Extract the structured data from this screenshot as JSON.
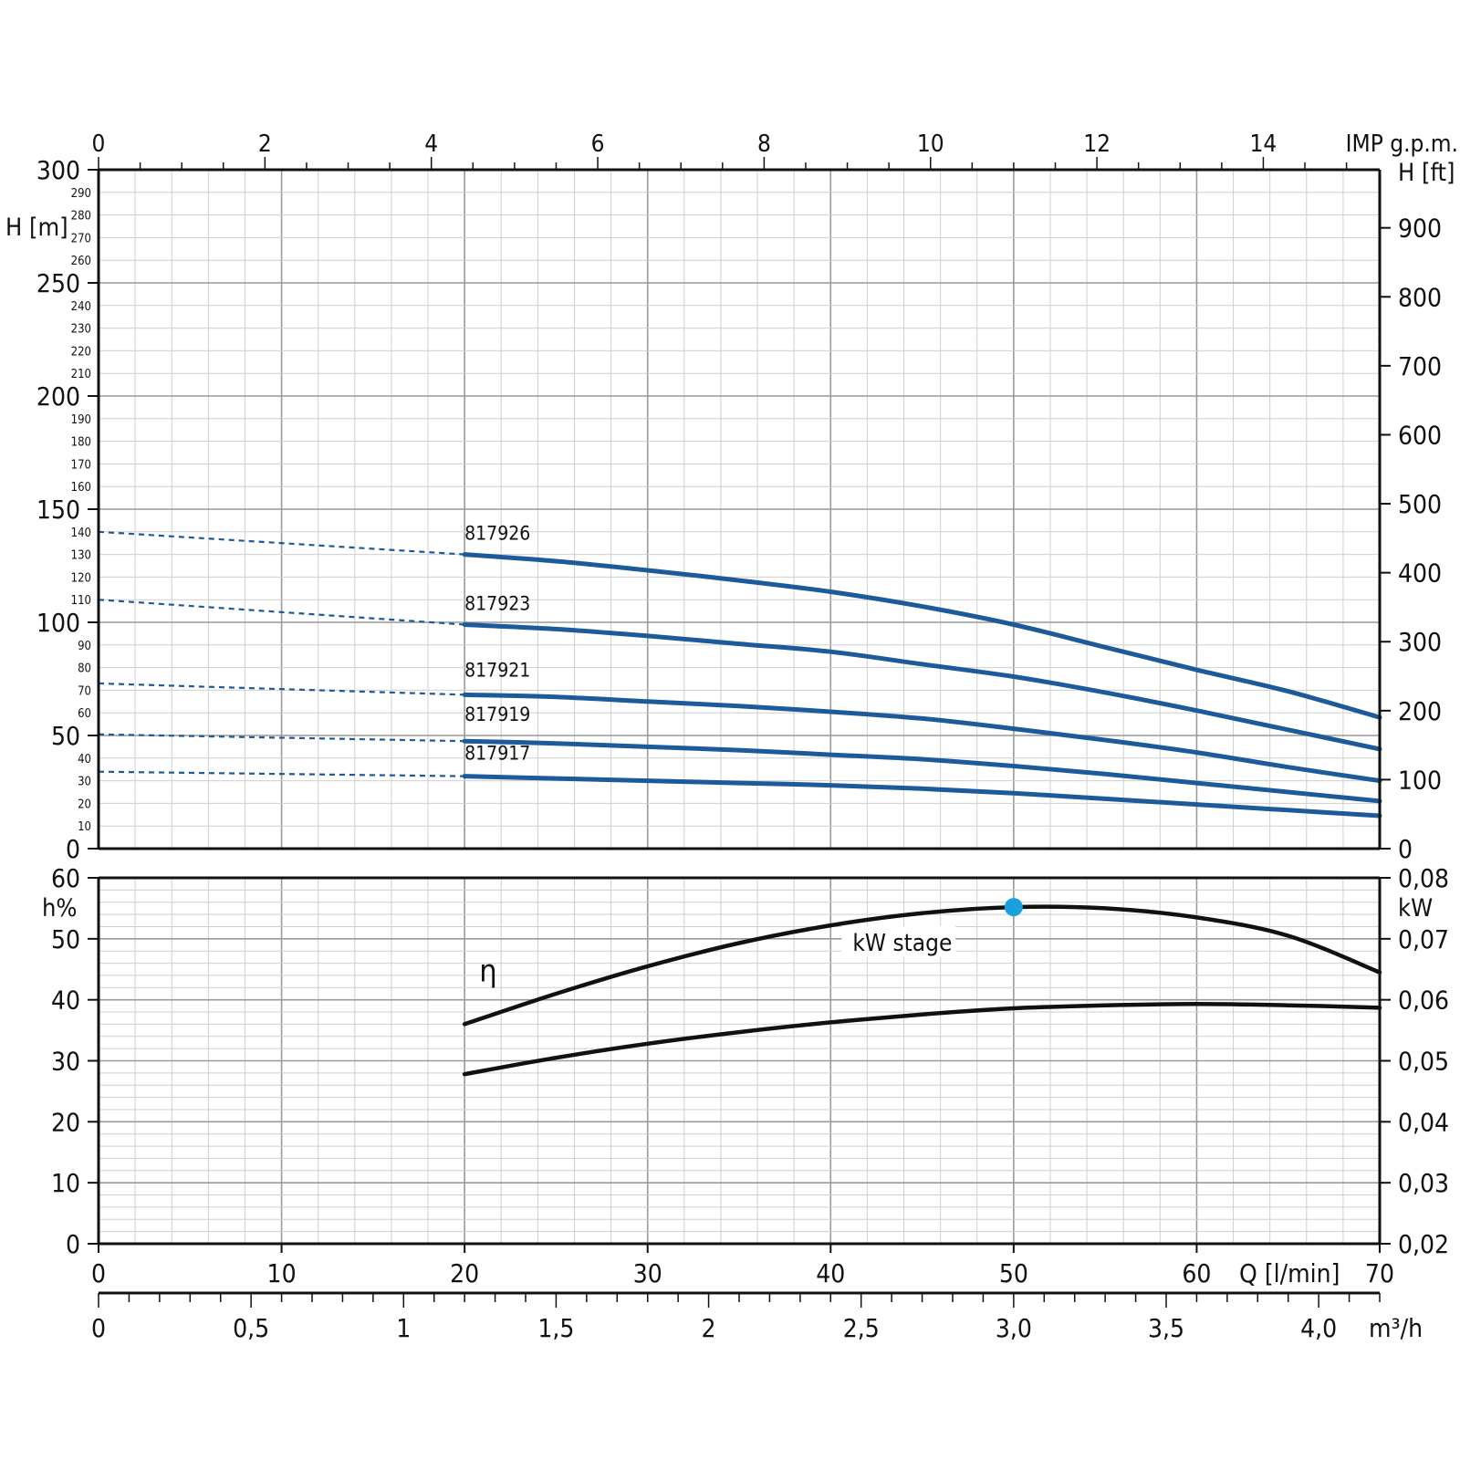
{
  "chart_data": [
    {
      "type": "line",
      "name": "head",
      "top_axis": {
        "label": "IMP g.p.m.",
        "ticks": [
          "0",
          "2",
          "4",
          "6",
          "8",
          "10",
          "12",
          "14"
        ],
        "values": [
          0,
          2,
          4,
          6,
          8,
          10,
          12,
          14
        ]
      },
      "y_left": {
        "label": "H [m]",
        "ylim": [
          0,
          300
        ],
        "major_ticks": [
          "0",
          "50",
          "100",
          "150",
          "200",
          "250",
          "300"
        ],
        "major_values": [
          0,
          50,
          100,
          150,
          200,
          250,
          300
        ],
        "minor_ticks": [
          "10",
          "20",
          "30",
          "40",
          "60",
          "70",
          "80",
          "90",
          "110",
          "120",
          "130",
          "140",
          "160",
          "170",
          "180",
          "190",
          "210",
          "220",
          "230",
          "240",
          "260",
          "270",
          "280",
          "290"
        ],
        "minor_values": [
          10,
          20,
          30,
          40,
          60,
          70,
          80,
          90,
          110,
          120,
          130,
          140,
          160,
          170,
          180,
          190,
          210,
          220,
          230,
          240,
          260,
          270,
          280,
          290
        ]
      },
      "y_right": {
        "label": "H [ft]",
        "ticks": [
          "0",
          "100",
          "200",
          "300",
          "400",
          "500",
          "600",
          "700",
          "800",
          "900"
        ],
        "values": [
          0,
          100,
          200,
          300,
          400,
          500,
          600,
          700,
          800,
          900
        ]
      },
      "xlim": [
        0,
        70
      ],
      "grid": true,
      "series": [
        {
          "name": "817926",
          "x": [
            20,
            25,
            30,
            35,
            40,
            45,
            50,
            55,
            60,
            65,
            70
          ],
          "y": [
            130,
            127,
            123,
            118.5,
            113.5,
            107,
            99,
            89,
            79,
            69.5,
            58
          ],
          "dashed": [
            [
              0,
              140
            ],
            [
              20,
              130
            ]
          ]
        },
        {
          "name": "817923",
          "x": [
            20,
            25,
            30,
            35,
            40,
            45,
            50,
            55,
            60,
            65,
            70
          ],
          "y": [
            99,
            97,
            94,
            90.5,
            87,
            81.5,
            76,
            69,
            61,
            52.5,
            44
          ],
          "dashed": [
            [
              0,
              110
            ],
            [
              20,
              99
            ]
          ]
        },
        {
          "name": "817921",
          "x": [
            20,
            25,
            30,
            35,
            40,
            45,
            50,
            55,
            60,
            65,
            70
          ],
          "y": [
            68,
            67,
            65,
            63,
            60.5,
            57.5,
            53,
            48,
            42.5,
            36,
            30
          ],
          "dashed": [
            [
              0,
              73
            ],
            [
              20,
              68
            ]
          ]
        },
        {
          "name": "817919",
          "x": [
            20,
            25,
            30,
            35,
            40,
            45,
            50,
            55,
            60,
            65,
            70
          ],
          "y": [
            47.5,
            46.5,
            45,
            43.5,
            41.5,
            39.5,
            36.5,
            33,
            29,
            25,
            21
          ],
          "dashed": [
            [
              0,
              50.5
            ],
            [
              20,
              47.5
            ]
          ]
        },
        {
          "name": "817917",
          "x": [
            20,
            25,
            30,
            35,
            40,
            45,
            50,
            55,
            60,
            65,
            70
          ],
          "y": [
            32,
            31,
            30,
            29,
            28,
            26.5,
            24.5,
            22,
            19.5,
            17,
            14.5
          ],
          "dashed": [
            [
              0,
              34
            ],
            [
              20,
              32
            ]
          ]
        }
      ]
    },
    {
      "type": "line",
      "name": "efficiency-power",
      "y_left": {
        "label": "h%",
        "ylim": [
          0,
          60
        ],
        "ticks": [
          "0",
          "10",
          "20",
          "30",
          "40",
          "50",
          "60"
        ],
        "values": [
          0,
          10,
          20,
          30,
          40,
          50,
          60
        ]
      },
      "y_right": {
        "label": "kW",
        "ylim": [
          0.02,
          0.08
        ],
        "ticks": [
          "0,02",
          "0,03",
          "0,04",
          "0,05",
          "0,06",
          "0,07",
          "0,08"
        ],
        "values": [
          0.02,
          0.03,
          0.04,
          0.05,
          0.06,
          0.07,
          0.08
        ]
      },
      "x_bottom": {
        "label": "Q [l/min]",
        "ticks": [
          "0",
          "10",
          "20",
          "30",
          "40",
          "50",
          "60",
          "70"
        ],
        "values": [
          0,
          10,
          20,
          30,
          40,
          50,
          60,
          70
        ]
      },
      "x_bottom2": {
        "label": "m³/h",
        "ticks": [
          "0",
          "0,5",
          "1",
          "1,5",
          "2",
          "2,5",
          "3,0",
          "3,5",
          "4,0"
        ],
        "values": [
          0,
          0.5,
          1,
          1.5,
          2,
          2.5,
          3,
          3.5,
          4
        ]
      },
      "xlim": [
        0,
        70
      ],
      "grid": true,
      "series": [
        {
          "name": "η",
          "axis": "left",
          "x": [
            20,
            25,
            30,
            35,
            40,
            45,
            50,
            55,
            60,
            65,
            70
          ],
          "y": [
            36,
            41,
            45.5,
            49.3,
            52.2,
            54.2,
            55.2,
            55,
            53.5,
            50.5,
            44.5
          ]
        },
        {
          "name": "kW stage",
          "axis": "right",
          "x": [
            20,
            25,
            30,
            35,
            40,
            45,
            50,
            55,
            60,
            65,
            70
          ],
          "y": [
            0.0478,
            0.0505,
            0.0528,
            0.0547,
            0.0563,
            0.0576,
            0.0586,
            0.0591,
            0.0593,
            0.0591,
            0.0587
          ]
        }
      ],
      "bep": {
        "x": 50,
        "y": 55.2,
        "color": "#1a9fdf"
      },
      "annotations": {
        "eta": "η",
        "kw_stage": "kW stage"
      }
    }
  ],
  "colors": {
    "head_curve": "#1d5a9b",
    "black_curve": "#111111",
    "bep_dot": "#1a9fdf"
  }
}
